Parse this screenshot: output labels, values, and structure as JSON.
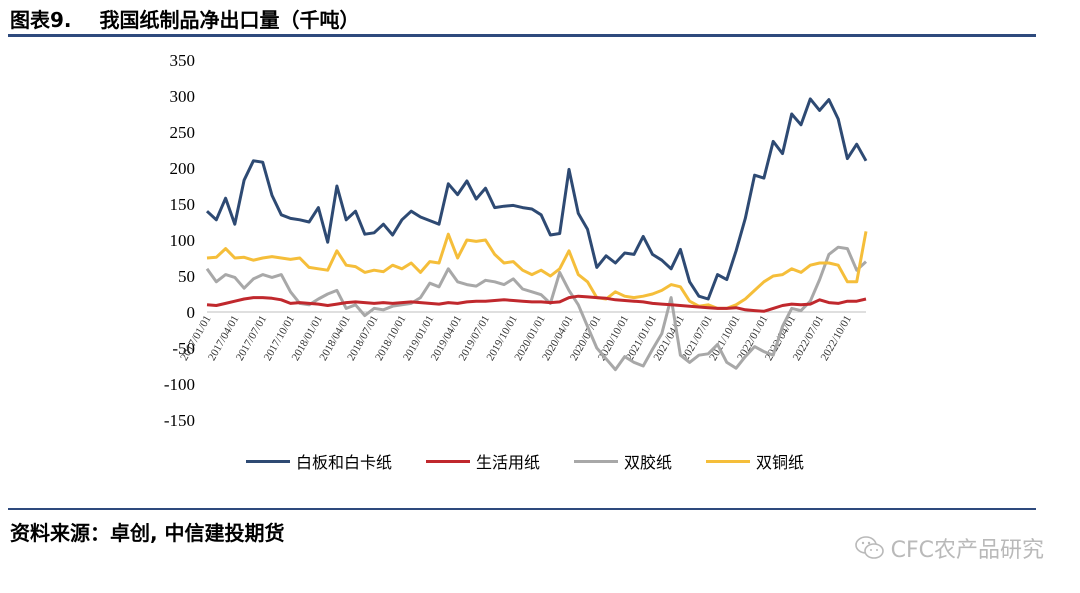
{
  "header": {
    "figure_label": "图表9.",
    "title": "我国纸制品净出口量（千吨）"
  },
  "footer": {
    "source": "资料来源：卓创, 中信建投期货",
    "watermark": "CFC农产品研究",
    "watermark_icon": "wechat-icon"
  },
  "colors": {
    "rule": "#2e4a7d",
    "series": [
      "#2e4a73",
      "#c0282d",
      "#a8a8a8",
      "#f5be3a"
    ]
  },
  "chart_data": {
    "type": "line",
    "title": "我国纸制品净出口量（千吨）",
    "xlabel": "",
    "ylabel": "",
    "ylim": [
      -150,
      350
    ],
    "yticks": [
      350,
      300,
      250,
      200,
      150,
      100,
      50,
      0,
      -50,
      -100,
      -150
    ],
    "x_tick_labels": [
      "2017/01/01",
      "2017/04/01",
      "2017/07/01",
      "2017/10/01",
      "2018/01/01",
      "2018/04/01",
      "2018/07/01",
      "2018/10/01",
      "2019/01/01",
      "2019/04/01",
      "2019/07/01",
      "2019/10/01",
      "2020/01/01",
      "2020/04/01",
      "2020/07/01",
      "2020/10/01",
      "2021/01/01",
      "2021/04/01",
      "2021/07/01",
      "2021/10/01",
      "2022/01/01",
      "2022/04/01",
      "2022/07/01",
      "2022/10/01"
    ],
    "grid": false,
    "legend_position": "bottom",
    "series": [
      {
        "name": "白板和白卡纸",
        "values": [
          140,
          128,
          158,
          122,
          183,
          210,
          208,
          162,
          135,
          130,
          128,
          125,
          145,
          97,
          175,
          128,
          140,
          108,
          110,
          122,
          107,
          128,
          140,
          132,
          127,
          122,
          178,
          163,
          182,
          157,
          172,
          145,
          147,
          148,
          145,
          143,
          135,
          107,
          109,
          198,
          137,
          115,
          62,
          78,
          68,
          82,
          80,
          105,
          80,
          72,
          60,
          87,
          42,
          22,
          18,
          52,
          45,
          85,
          130,
          190,
          186,
          237,
          220,
          275,
          260,
          296,
          280,
          295,
          268,
          213,
          233,
          210
        ]
      },
      {
        "name": "生活用纸",
        "values": [
          10,
          9,
          12,
          15,
          18,
          20,
          20,
          19,
          17,
          12,
          13,
          12,
          11,
          9,
          11,
          13,
          14,
          13,
          12,
          13,
          12,
          13,
          14,
          13,
          12,
          11,
          13,
          12,
          14,
          15,
          15,
          16,
          17,
          16,
          15,
          14,
          14,
          13,
          14,
          20,
          22,
          21,
          20,
          19,
          17,
          16,
          15,
          14,
          12,
          11,
          10,
          9,
          8,
          7,
          6,
          5,
          5,
          6,
          3,
          2,
          1,
          5,
          9,
          11,
          10,
          11,
          17,
          13,
          12,
          15,
          15,
          18
        ]
      },
      {
        "name": "双胶纸",
        "values": [
          60,
          42,
          52,
          48,
          33,
          46,
          52,
          48,
          52,
          28,
          12,
          10,
          18,
          25,
          30,
          5,
          10,
          -5,
          5,
          3,
          8,
          10,
          12,
          20,
          40,
          35,
          60,
          42,
          38,
          36,
          44,
          42,
          38,
          46,
          32,
          28,
          24,
          12,
          55,
          30,
          10,
          -20,
          -50,
          -65,
          -80,
          -62,
          -70,
          -75,
          -52,
          -30,
          20,
          -60,
          -70,
          -60,
          -58,
          -45,
          -70,
          -78,
          -62,
          -48,
          -55,
          -60,
          -20,
          5,
          2,
          15,
          45,
          80,
          90,
          88,
          58,
          70
        ]
      },
      {
        "name": "双铜纸",
        "values": [
          75,
          76,
          88,
          75,
          76,
          72,
          75,
          77,
          75,
          73,
          75,
          62,
          60,
          58,
          85,
          65,
          63,
          55,
          58,
          56,
          65,
          60,
          68,
          55,
          70,
          68,
          108,
          75,
          100,
          98,
          100,
          80,
          68,
          70,
          58,
          52,
          58,
          50,
          60,
          85,
          52,
          42,
          20,
          18,
          28,
          22,
          20,
          22,
          25,
          30,
          38,
          35,
          15,
          8,
          10,
          5,
          5,
          10,
          18,
          30,
          42,
          50,
          52,
          60,
          55,
          65,
          68,
          68,
          65,
          42,
          42,
          112
        ]
      }
    ]
  }
}
